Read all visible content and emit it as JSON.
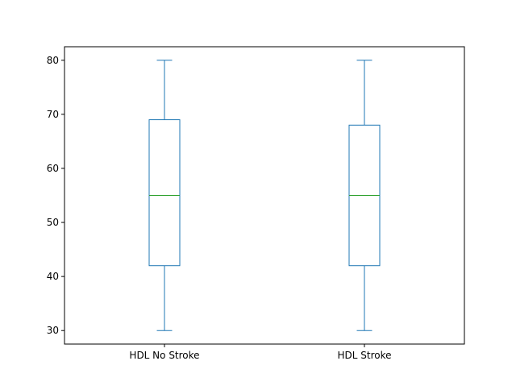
{
  "chart_data": {
    "type": "box",
    "title": "",
    "xlabel": "",
    "ylabel": "",
    "ylim": [
      27.5,
      82.5
    ],
    "yticks": [
      30,
      40,
      50,
      60,
      70,
      80
    ],
    "grid": false,
    "categories": [
      "HDL No Stroke",
      "HDL Stroke"
    ],
    "boxes": [
      {
        "category": "HDL No Stroke",
        "whisker_low": 30,
        "q1": 42,
        "median": 55,
        "q3": 69,
        "whisker_high": 80
      },
      {
        "category": "HDL Stroke",
        "whisker_low": 30,
        "q1": 42,
        "median": 55,
        "q3": 68,
        "whisker_high": 80
      }
    ],
    "colors": {
      "box": "#1f77b4",
      "whisker": "#1f77b4",
      "median": "#2ca02c",
      "axes": "#000000"
    }
  }
}
